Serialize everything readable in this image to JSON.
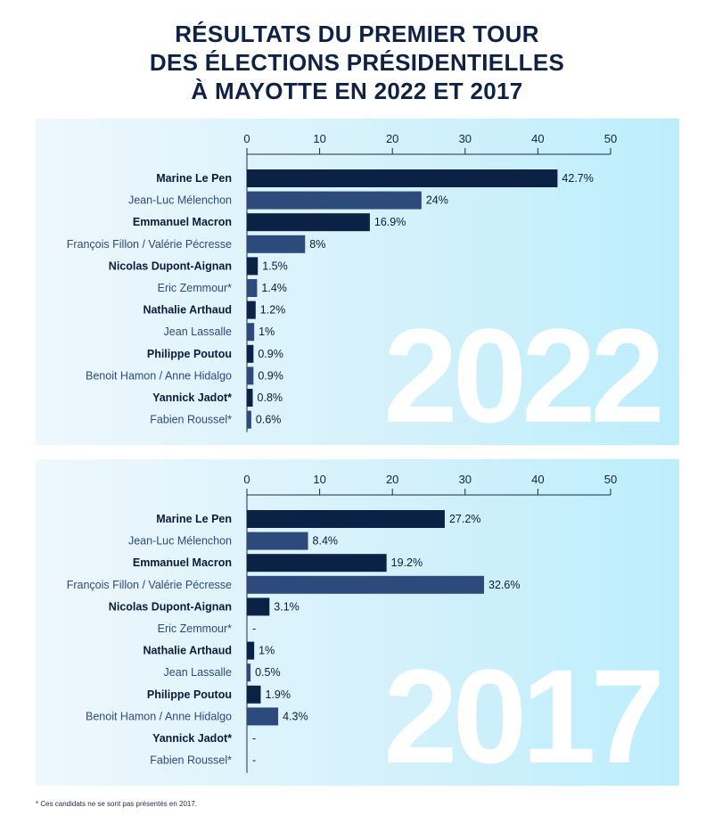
{
  "title_lines": [
    "RÉSULTATS DU PREMIER TOUR",
    "DES ÉLECTIONS PRÉSIDENTIELLES",
    "À MAYOTTE EN 2022 ET 2017"
  ],
  "footnote": "* Ces candidats ne se sont pas présentés en 2017.",
  "colors": {
    "dark_bar": "#0b2146",
    "light_bar": "#2d4a7c",
    "watermark": "#ffffff"
  },
  "chart_data": [
    {
      "type": "bar",
      "orientation": "horizontal",
      "year_label": "2022",
      "xlim": [
        0,
        50
      ],
      "xticks": [
        "0",
        "10",
        "20",
        "30",
        "40",
        "50"
      ],
      "categories": [
        "Marine Le Pen",
        "Jean-Luc Mélenchon",
        "Emmanuel Macron",
        "François Fillon / Valérie Pécresse",
        "Nicolas Dupont-Aignan",
        "Eric Zemmour*",
        "Nathalie Arthaud",
        "Jean Lassalle",
        "Philippe Poutou",
        "Benoit Hamon / Anne Hidalgo",
        "Yannick Jadot*",
        "Fabien Roussel*"
      ],
      "values": [
        42.7,
        24,
        16.9,
        8,
        1.5,
        1.4,
        1.2,
        1,
        0.9,
        0.9,
        0.8,
        0.6
      ],
      "labels": [
        "42.7%",
        "24%",
        "16.9%",
        "8%",
        "1.5%",
        "1.4%",
        "1.2%",
        "1%",
        "0.9%",
        "0.9%",
        "0.8%",
        "0.6%"
      ]
    },
    {
      "type": "bar",
      "orientation": "horizontal",
      "year_label": "2017",
      "xlim": [
        0,
        50
      ],
      "xticks": [
        "0",
        "10",
        "20",
        "30",
        "40",
        "50"
      ],
      "categories": [
        "Marine Le Pen",
        "Jean-Luc Mélenchon",
        "Emmanuel Macron",
        "François Fillon / Valérie Pécresse",
        "Nicolas Dupont-Aignan",
        "Eric Zemmour*",
        "Nathalie Arthaud",
        "Jean Lassalle",
        "Philippe Poutou",
        "Benoit Hamon / Anne Hidalgo",
        "Yannick Jadot*",
        "Fabien Roussel*"
      ],
      "values": [
        27.2,
        8.4,
        19.2,
        32.6,
        3.1,
        null,
        1,
        0.5,
        1.9,
        4.3,
        null,
        null
      ],
      "labels": [
        "27.2%",
        "8.4%",
        "19.2%",
        "32.6%",
        "3.1%",
        "-",
        "1%",
        "0.5%",
        "1.9%",
        "4.3%",
        "-",
        "-"
      ]
    }
  ]
}
